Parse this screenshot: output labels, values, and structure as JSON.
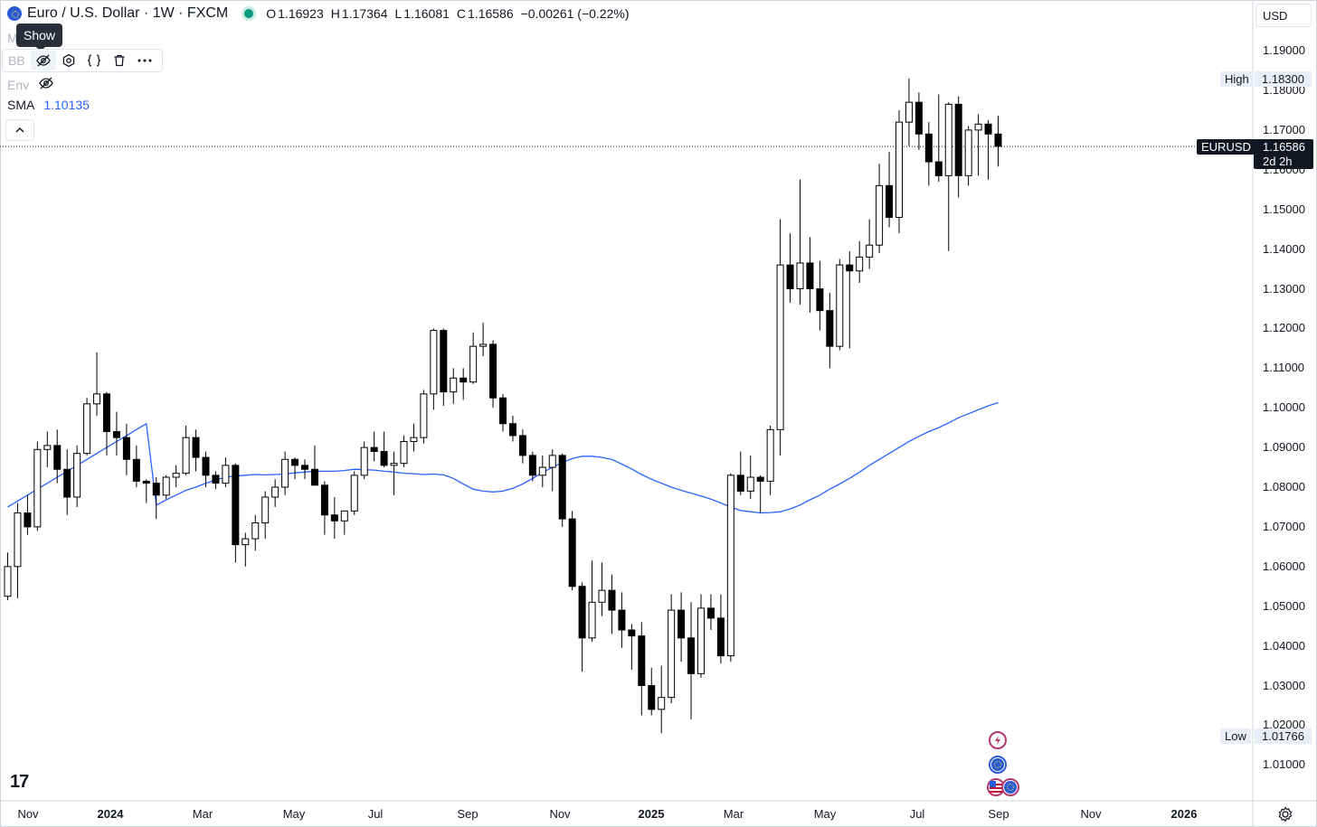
{
  "header": {
    "symbol_title": "Euro / U.S. Dollar · 1W · FXCM",
    "ohlc": [
      {
        "key": "O",
        "value": "1.16923"
      },
      {
        "key": "H",
        "value": "1.17364"
      },
      {
        "key": "L",
        "value": "1.16081"
      },
      {
        "key": "C",
        "value": "1.16586"
      }
    ],
    "change": "−0.00261 (−0.22%)",
    "status_color": "#089981"
  },
  "tooltip": {
    "text": "Show"
  },
  "hidden_row_letter": "M",
  "indicators": {
    "row1_name": "BB",
    "row2_name": "Env",
    "row3_name": "SMA",
    "row3_value": "1.10135",
    "sma_color": "#2962ff"
  },
  "toolbar_icons": [
    "eye-crossed-icon",
    "settings-icon",
    "source-code-icon",
    "delete-icon",
    "more-icon"
  ],
  "price_axis": {
    "currency": "USD",
    "ticks": [
      "1.19000",
      "1.18000",
      "1.17000",
      "1.16000",
      "1.15000",
      "1.14000",
      "1.13000",
      "1.12000",
      "1.11000",
      "1.10000",
      "1.09000",
      "1.08000",
      "1.07000",
      "1.06000",
      "1.05000",
      "1.04000",
      "1.03000",
      "1.02000",
      "1.01000"
    ],
    "high_label": "High",
    "high_value": "1.18300",
    "low_label": "Low",
    "low_value": "1.01766",
    "current_symbol": "EURUSD",
    "current_price": "1.16586",
    "countdown": "2d 2h"
  },
  "time_axis": {
    "labels": [
      {
        "text": "Nov",
        "bold": false
      },
      {
        "text": "2024",
        "bold": true
      },
      {
        "text": "Mar",
        "bold": false
      },
      {
        "text": "May",
        "bold": false
      },
      {
        "text": "Jul",
        "bold": false
      },
      {
        "text": "Sep",
        "bold": false
      },
      {
        "text": "Nov",
        "bold": false
      },
      {
        "text": "2025",
        "bold": true
      },
      {
        "text": "Mar",
        "bold": false
      },
      {
        "text": "May",
        "bold": false
      },
      {
        "text": "Jul",
        "bold": false
      },
      {
        "text": "Sep",
        "bold": false
      },
      {
        "text": "Nov",
        "bold": false
      },
      {
        "text": "2026",
        "bold": true
      }
    ]
  },
  "logo_text": "17",
  "colors": {
    "up_body": "#ffffff",
    "down_body": "#000000",
    "wick": "#000000",
    "sma": "#2962ff",
    "event_border": "#b33a6e"
  },
  "chart_data": {
    "type": "candlestick",
    "interval": "1W",
    "ylim": [
      1.0,
      1.195
    ],
    "candles": [
      [
        1.0525,
        1.0635,
        1.0515,
        1.06
      ],
      [
        1.06,
        1.076,
        1.052,
        1.0735
      ],
      [
        1.0735,
        1.078,
        1.068,
        1.07
      ],
      [
        1.07,
        1.0915,
        1.069,
        1.0895
      ],
      [
        1.0895,
        1.094,
        1.085,
        1.0905
      ],
      [
        1.0905,
        1.0945,
        1.081,
        1.0845
      ],
      [
        1.0845,
        1.0895,
        1.073,
        1.0775
      ],
      [
        1.0775,
        1.0905,
        1.075,
        1.0885
      ],
      [
        1.0885,
        1.1025,
        1.088,
        1.101
      ],
      [
        1.101,
        1.114,
        1.098,
        1.1035
      ],
      [
        1.1035,
        1.104,
        1.088,
        1.094
      ],
      [
        1.094,
        1.099,
        1.088,
        1.0925
      ],
      [
        1.0925,
        1.096,
        1.083,
        1.087
      ],
      [
        1.087,
        1.0905,
        1.08,
        1.0815
      ],
      [
        1.0815,
        1.082,
        1.076,
        1.081
      ],
      [
        1.081,
        1.0825,
        1.072,
        1.078
      ],
      [
        1.078,
        1.083,
        1.077,
        1.0825
      ],
      [
        1.0825,
        1.0855,
        1.08,
        1.0835
      ],
      [
        1.0835,
        1.0955,
        1.083,
        1.0925
      ],
      [
        1.0925,
        1.0945,
        1.084,
        1.0875
      ],
      [
        1.0875,
        1.089,
        1.08,
        1.083
      ],
      [
        1.083,
        1.084,
        1.0795,
        1.081
      ],
      [
        1.081,
        1.0875,
        1.08,
        1.0855
      ],
      [
        1.0855,
        1.086,
        1.061,
        1.0655
      ],
      [
        1.0655,
        1.0685,
        1.06,
        1.067
      ],
      [
        1.067,
        1.073,
        1.064,
        1.071
      ],
      [
        1.071,
        1.079,
        1.067,
        1.0775
      ],
      [
        1.0775,
        1.082,
        1.075,
        1.08
      ],
      [
        1.08,
        1.089,
        1.078,
        1.087
      ],
      [
        1.087,
        1.0875,
        1.082,
        1.0855
      ],
      [
        1.0855,
        1.087,
        1.082,
        1.0845
      ],
      [
        1.0845,
        1.0905,
        1.0815,
        1.0805
      ],
      [
        1.0805,
        1.0815,
        1.068,
        1.073
      ],
      [
        1.073,
        1.0775,
        1.067,
        1.0715
      ],
      [
        1.0715,
        1.074,
        1.068,
        1.074
      ],
      [
        1.074,
        1.084,
        1.073,
        1.083
      ],
      [
        1.083,
        1.0915,
        1.082,
        1.09
      ],
      [
        1.09,
        1.094,
        1.0865,
        1.089
      ],
      [
        1.089,
        1.094,
        1.085,
        1.0855
      ],
      [
        1.0855,
        1.089,
        1.078,
        1.086
      ],
      [
        1.086,
        1.093,
        1.085,
        1.0915
      ],
      [
        1.0915,
        1.096,
        1.089,
        1.0925
      ],
      [
        1.0925,
        1.1045,
        1.091,
        1.1035
      ],
      [
        1.1035,
        1.12,
        1.0995,
        1.1195
      ],
      [
        1.1195,
        1.12,
        1.1005,
        1.104
      ],
      [
        1.104,
        1.11,
        1.101,
        1.1075
      ],
      [
        1.1075,
        1.11,
        1.102,
        1.1065
      ],
      [
        1.1065,
        1.119,
        1.106,
        1.1155
      ],
      [
        1.1155,
        1.1215,
        1.113,
        1.116
      ],
      [
        1.116,
        1.117,
        1.1,
        1.1025
      ],
      [
        1.1025,
        1.1035,
        1.094,
        1.096
      ],
      [
        1.096,
        1.098,
        1.0915,
        1.093
      ],
      [
        1.093,
        1.0945,
        1.086,
        1.088
      ],
      [
        1.088,
        1.089,
        1.0815,
        1.083
      ],
      [
        1.083,
        1.088,
        1.08,
        1.085
      ],
      [
        1.085,
        1.0895,
        1.079,
        1.088
      ],
      [
        1.088,
        1.0885,
        1.07,
        1.072
      ],
      [
        1.072,
        1.074,
        1.054,
        1.055
      ],
      [
        1.055,
        1.056,
        1.0335,
        1.042
      ],
      [
        1.042,
        1.0615,
        1.041,
        1.051
      ],
      [
        1.051,
        1.061,
        1.0475,
        1.054
      ],
      [
        1.054,
        1.058,
        1.043,
        1.049
      ],
      [
        1.049,
        1.0535,
        1.0395,
        1.044
      ],
      [
        1.044,
        1.0455,
        1.034,
        1.0425
      ],
      [
        1.0425,
        1.046,
        1.0225,
        1.03
      ],
      [
        1.03,
        1.0345,
        1.0225,
        1.024
      ],
      [
        1.024,
        1.035,
        1.018,
        1.027
      ],
      [
        1.027,
        1.053,
        1.0255,
        1.049
      ],
      [
        1.049,
        1.0535,
        1.036,
        1.042
      ],
      [
        1.042,
        1.051,
        1.0215,
        1.033
      ],
      [
        1.033,
        1.053,
        1.032,
        1.0495
      ],
      [
        1.0495,
        1.053,
        1.044,
        1.047
      ],
      [
        1.047,
        1.053,
        1.0355,
        1.0375
      ],
      [
        1.0375,
        1.0835,
        1.036,
        1.083
      ],
      [
        1.083,
        1.089,
        1.078,
        1.079
      ],
      [
        1.079,
        1.088,
        1.077,
        1.0825
      ],
      [
        1.0825,
        1.083,
        1.0735,
        1.0815
      ],
      [
        1.0815,
        1.0955,
        1.078,
        1.0945
      ],
      [
        1.0945,
        1.1475,
        1.088,
        1.136
      ],
      [
        1.136,
        1.144,
        1.1265,
        1.13
      ],
      [
        1.13,
        1.1575,
        1.126,
        1.1365
      ],
      [
        1.1365,
        1.143,
        1.124,
        1.13
      ],
      [
        1.13,
        1.137,
        1.1195,
        1.1245
      ],
      [
        1.1245,
        1.129,
        1.11,
        1.1155
      ],
      [
        1.1155,
        1.1375,
        1.1145,
        1.136
      ],
      [
        1.136,
        1.1395,
        1.115,
        1.1345
      ],
      [
        1.1345,
        1.142,
        1.1315,
        1.138
      ],
      [
        1.138,
        1.1475,
        1.135,
        1.141
      ],
      [
        1.141,
        1.1615,
        1.139,
        1.156
      ],
      [
        1.156,
        1.1645,
        1.1455,
        1.148
      ],
      [
        1.148,
        1.175,
        1.144,
        1.172
      ],
      [
        1.172,
        1.183,
        1.166,
        1.177
      ],
      [
        1.177,
        1.1795,
        1.165,
        1.169
      ],
      [
        1.169,
        1.172,
        1.156,
        1.162
      ],
      [
        1.162,
        1.179,
        1.157,
        1.1585
      ],
      [
        1.1585,
        1.177,
        1.1395,
        1.1765
      ],
      [
        1.1765,
        1.1785,
        1.153,
        1.1585
      ],
      [
        1.1585,
        1.171,
        1.156,
        1.17
      ],
      [
        1.17,
        1.174,
        1.1585,
        1.1715
      ],
      [
        1.1715,
        1.1725,
        1.1575,
        1.169
      ],
      [
        1.169,
        1.1736,
        1.1608,
        1.1659
      ]
    ],
    "sma": [
      1.0755,
      1.0768,
      1.078,
      1.0792,
      1.08,
      1.081,
      1.0818,
      1.0825,
      1.0828,
      1.083,
      1.0832,
      1.0831,
      1.0832,
      1.0833,
      1.0836,
      1.0838,
      1.084,
      1.084,
      1.084,
      1.0842,
      1.0845,
      1.0844,
      1.0843,
      1.084,
      1.0838,
      1.0835,
      1.0834,
      1.0832,
      1.0833,
      1.0831,
      1.0822,
      1.0808,
      1.0795,
      1.079,
      1.0788,
      1.079,
      1.0797,
      1.0808,
      1.0822,
      1.0837,
      1.085,
      1.0862,
      1.0872,
      1.0878,
      1.0878,
      1.0875,
      1.087,
      1.0858,
      1.0846,
      1.0832,
      1.082,
      1.081,
      1.08,
      1.0792,
      1.0785,
      1.0778,
      1.077,
      1.076,
      1.075,
      1.0741,
      1.0738,
      1.0735,
      1.0736,
      1.0738,
      1.0745,
      1.0755,
      1.0768,
      1.078,
      1.0795,
      1.0808,
      1.0822,
      1.0838,
      1.0855,
      1.087,
      1.0885,
      1.09,
      1.0915,
      1.0928,
      1.094,
      1.095,
      1.0962,
      1.0975,
      1.0985,
      1.0995,
      1.1005,
      1.1013
    ]
  },
  "event_icons": [
    "lightning-icon",
    "eu-flag-icon",
    "us-eu-flags-icon"
  ]
}
